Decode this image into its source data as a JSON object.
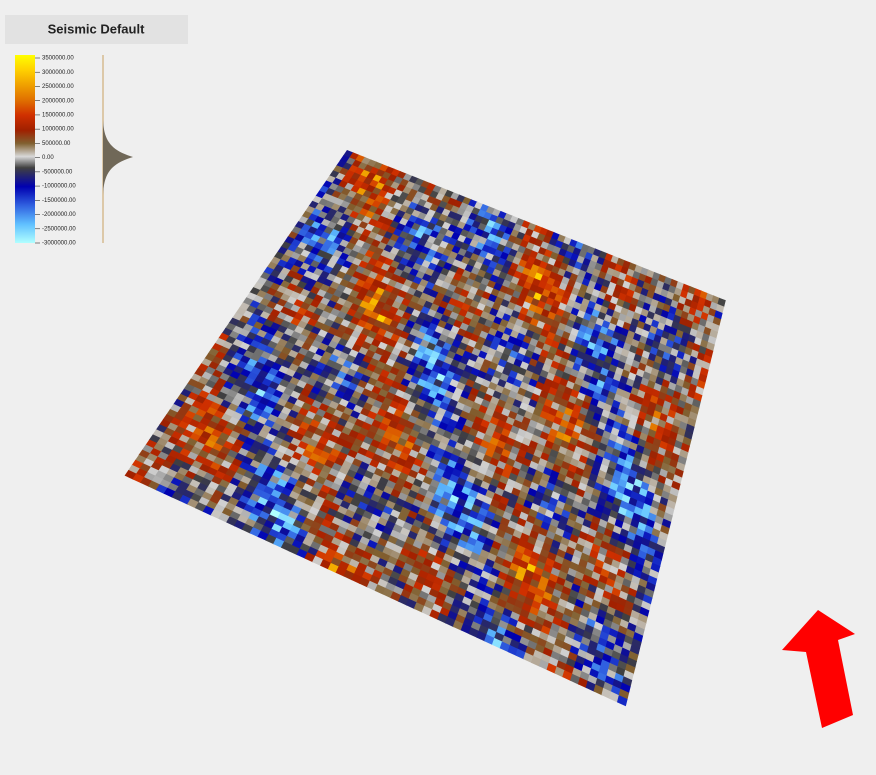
{
  "legend": {
    "title": "Seismic Default",
    "labels": [
      "3500000.00",
      "3000000.00",
      "2500000.00",
      "2000000.00",
      "1500000.00",
      "1000000.00",
      "500000.00",
      "0.00",
      "-500000.00",
      "-1000000.00",
      "-1500000.00",
      "-2000000.00",
      "-2500000.00",
      "-3000000.00"
    ]
  }
}
